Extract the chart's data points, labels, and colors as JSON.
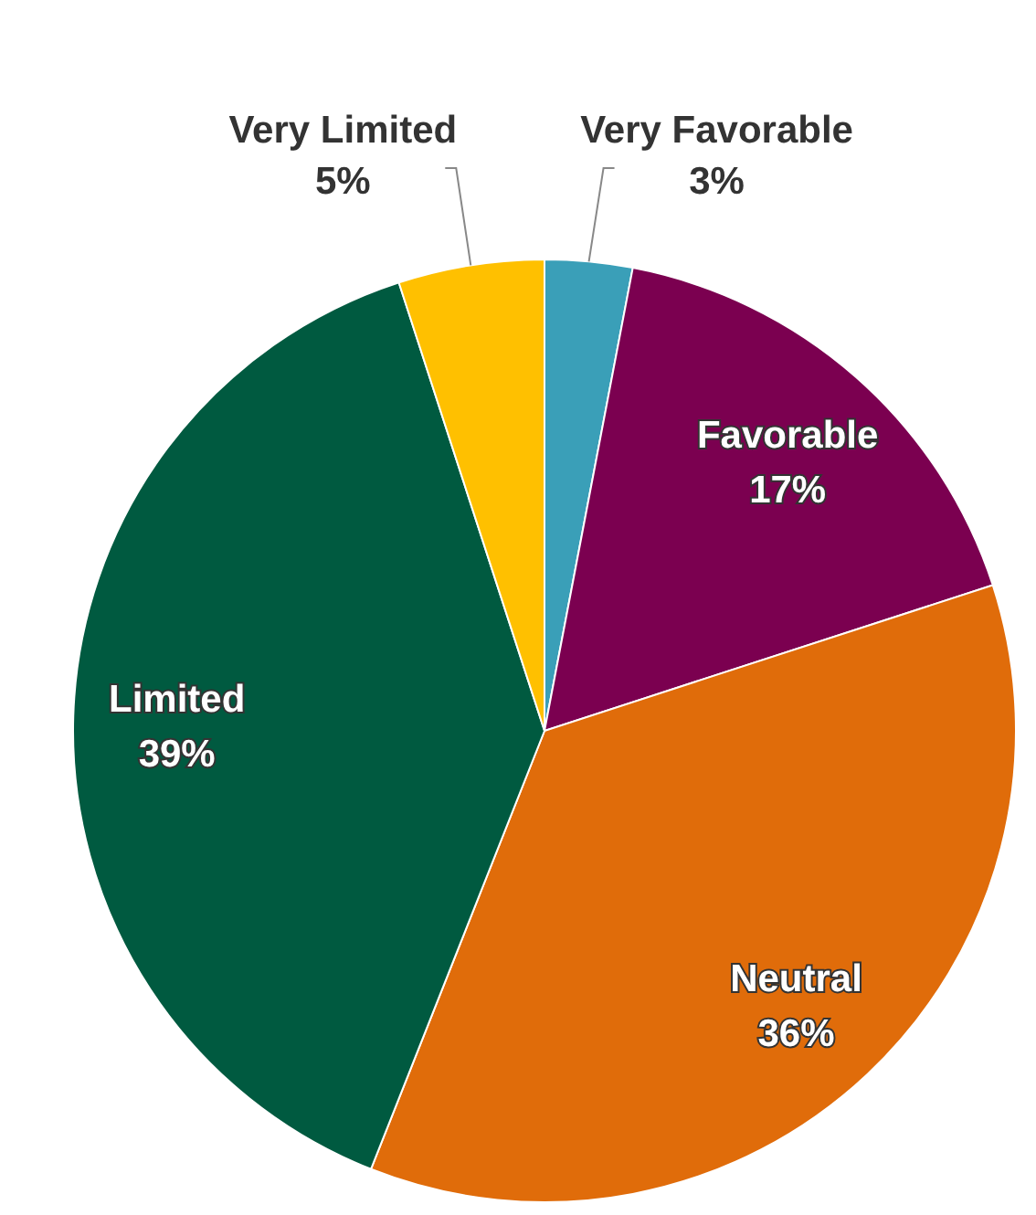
{
  "chart_data": {
    "type": "pie",
    "categories": [
      "Very Favorable",
      "Favorable",
      "Neutral",
      "Limited",
      "Very Limited"
    ],
    "values": [
      3,
      17,
      36,
      39,
      5
    ],
    "colors": [
      "#3a9fb8",
      "#7b0050",
      "#e06c0a",
      "#005a40",
      "#ffc000"
    ],
    "value_labels": [
      "3%",
      "17%",
      "36%",
      "39%",
      "5%"
    ]
  }
}
